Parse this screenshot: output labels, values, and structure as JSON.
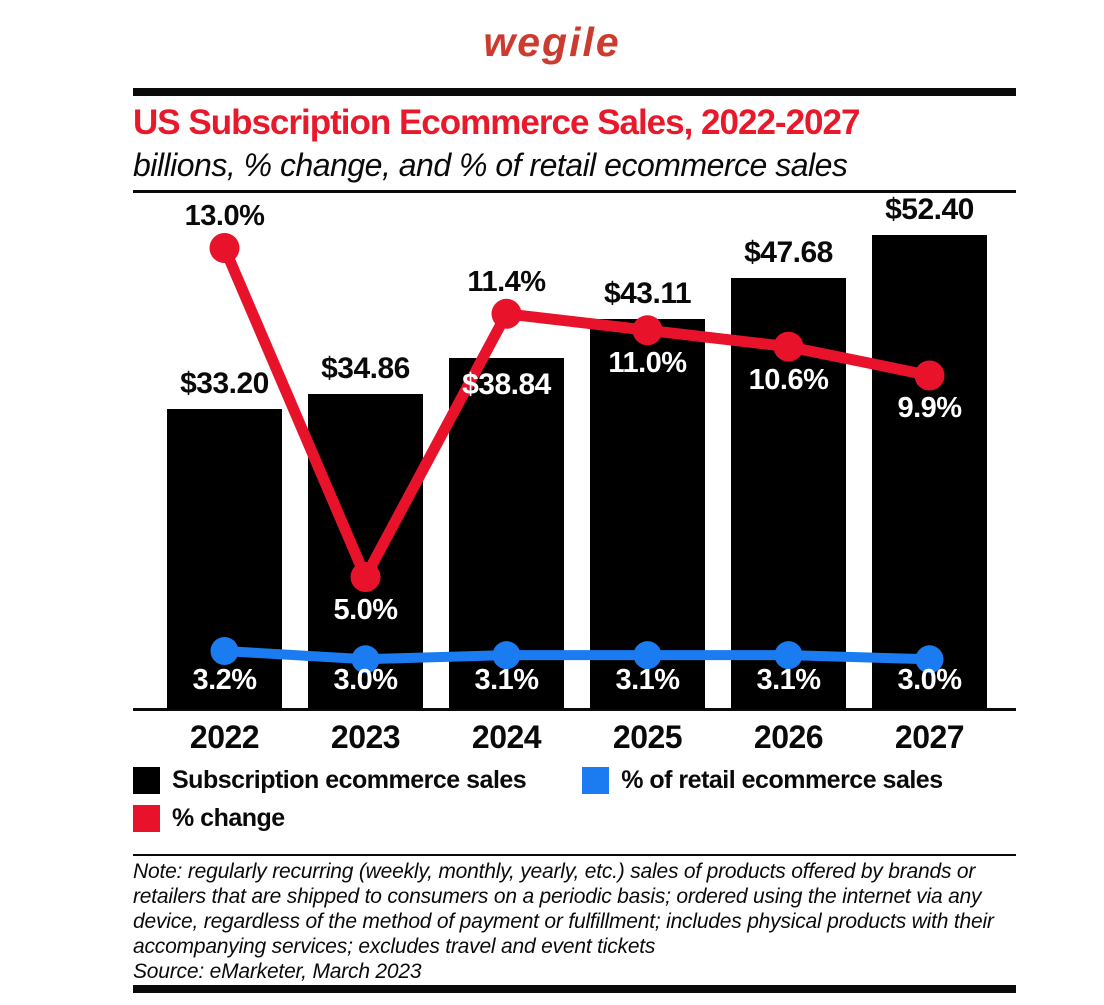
{
  "logo": {
    "text": "wegile",
    "color": "#cc3b30"
  },
  "colors": {
    "title_red": "#e8192b",
    "bar_black": "#000000",
    "change_red": "#e8132b",
    "retail_blue": "#1a7cf0"
  },
  "header": {
    "title": "US Subscription Ecommerce Sales, 2022-2027",
    "subtitle": "billions, % change, and % of retail ecommerce sales"
  },
  "chart_data": {
    "type": "bar",
    "categories": [
      "2022",
      "2023",
      "2024",
      "2025",
      "2026",
      "2027"
    ],
    "series": [
      {
        "name": "Subscription ecommerce sales",
        "type": "bar",
        "unit": "billions of dollars",
        "color": "#000000",
        "values": [
          33.2,
          34.86,
          38.84,
          43.11,
          47.68,
          52.4
        ],
        "labels": [
          "$33.20",
          "$34.86",
          "$38.84",
          "$43.11",
          "$47.68",
          "$52.40"
        ],
        "label_placement": [
          "above",
          "above",
          "inside",
          "above",
          "above",
          "above"
        ]
      },
      {
        "name": "% change",
        "type": "line",
        "color": "#e8132b",
        "values": [
          13.0,
          5.0,
          11.4,
          11.0,
          10.6,
          9.9
        ],
        "labels": [
          "13.0%",
          "5.0%",
          "11.4%",
          "11.0%",
          "10.6%",
          "9.9%"
        ],
        "label_placement": [
          "above",
          "below",
          "above",
          "below",
          "below",
          "below"
        ]
      },
      {
        "name": "% of retail ecommerce sales",
        "type": "line",
        "color": "#1a7cf0",
        "values": [
          3.2,
          3.0,
          3.1,
          3.1,
          3.1,
          3.0
        ],
        "labels": [
          "3.2%",
          "3.0%",
          "3.1%",
          "3.1%",
          "3.1%",
          "3.0%"
        ],
        "label_placement": [
          "below",
          "below",
          "below",
          "below",
          "below",
          "below"
        ]
      }
    ],
    "title": "US Subscription Ecommerce Sales, 2022-2027",
    "xlabel": "",
    "ylabel": "",
    "bar_axis_range": [
      0,
      52.4
    ],
    "grid": false,
    "legend_position": "bottom"
  },
  "legend": {
    "items": [
      {
        "label": "Subscription ecommerce sales",
        "color": "#000000"
      },
      {
        "label": "% of retail ecommerce sales",
        "color": "#1a7cf0"
      },
      {
        "label": "% change",
        "color": "#e8132b"
      }
    ]
  },
  "footnote": {
    "note": "Note: regularly recurring (weekly, monthly, yearly, etc.) sales of products offered by brands or retailers that are shipped to consumers on a periodic basis; ordered using the internet via any device, regardless of the method of payment or fulfillment; includes physical products with their accompanying services; excludes travel and event tickets",
    "source": "Source: eMarketer, March 2023"
  }
}
